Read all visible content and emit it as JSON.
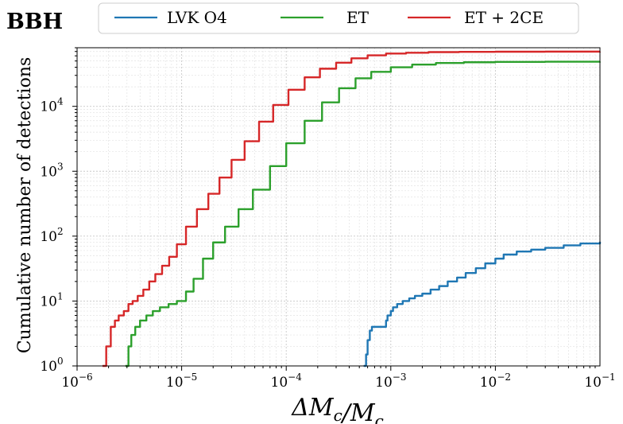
{
  "chart_data": {
    "type": "line",
    "title": "",
    "panel_label": "BBH",
    "xlabel": "ΔMc/Mc",
    "ylabel": "Cumulative number of detections",
    "xscale": "log",
    "yscale": "log",
    "xlim": [
      1e-06,
      0.1
    ],
    "ylim": [
      1,
      80000
    ],
    "x_ticks": [
      {
        "value": 1e-06,
        "base": "10",
        "exp": "−6"
      },
      {
        "value": 1e-05,
        "base": "10",
        "exp": "−5"
      },
      {
        "value": 0.0001,
        "base": "10",
        "exp": "−4"
      },
      {
        "value": 0.001,
        "base": "10",
        "exp": "−3"
      },
      {
        "value": 0.01,
        "base": "10",
        "exp": "−2"
      },
      {
        "value": 0.1,
        "base": "10",
        "exp": "−1"
      }
    ],
    "y_ticks": [
      {
        "value": 1,
        "base": "10",
        "exp": "0"
      },
      {
        "value": 10,
        "base": "10",
        "exp": "1"
      },
      {
        "value": 100,
        "base": "10",
        "exp": "2"
      },
      {
        "value": 1000,
        "base": "10",
        "exp": "3"
      },
      {
        "value": 10000,
        "base": "10",
        "exp": "4"
      }
    ],
    "grid": true,
    "legend_position": "top",
    "series": [
      {
        "name": "LVK O4",
        "color": "#1f77b4",
        "x": [
          0.00055,
          0.00058,
          0.0006,
          0.00063,
          0.00066,
          0.00088,
          0.0009,
          0.00093,
          0.001,
          0.00105,
          0.00115,
          0.0013,
          0.0015,
          0.0017,
          0.002,
          0.0024,
          0.0029,
          0.0035,
          0.0043,
          0.0052,
          0.0065,
          0.008,
          0.01,
          0.012,
          0.016,
          0.022,
          0.03,
          0.045,
          0.065,
          0.1
        ],
        "y": [
          1,
          1.5,
          2.5,
          3.5,
          4,
          4,
          5,
          6,
          7,
          8,
          9,
          10,
          11,
          12,
          13,
          15,
          17,
          20,
          23,
          27,
          32,
          38,
          45,
          52,
          58,
          62,
          66,
          72,
          77,
          82
        ]
      },
      {
        "name": "ET",
        "color": "#2ca02c",
        "x": [
          2.9e-06,
          3.1e-06,
          3.3e-06,
          3.6e-06,
          4e-06,
          4.6e-06,
          5.3e-06,
          6.2e-06,
          7.5e-06,
          9e-06,
          1.1e-05,
          1.3e-05,
          1.6e-05,
          2e-05,
          2.6e-05,
          3.5e-05,
          4.8e-05,
          7e-05,
          0.0001,
          0.00015,
          0.00022,
          0.00032,
          0.00046,
          0.00065,
          0.001,
          0.0016,
          0.0027,
          0.005,
          0.01,
          0.03,
          0.1
        ],
        "y": [
          1,
          2,
          3,
          4,
          5,
          6,
          7,
          8,
          9,
          10,
          14,
          22,
          45,
          80,
          140,
          260,
          520,
          1200,
          2700,
          6000,
          11500,
          19000,
          27000,
          34000,
          40000,
          44000,
          46500,
          47800,
          48400,
          48700,
          48800
        ]
      },
      {
        "name": "ET + 2CE",
        "color": "#d62728",
        "x": [
          1.75e-06,
          1.9e-06,
          2.1e-06,
          2.3e-06,
          2.5e-06,
          2.8e-06,
          3.1e-06,
          3.4e-06,
          3.8e-06,
          4.3e-06,
          4.9e-06,
          5.6e-06,
          6.5e-06,
          7.6e-06,
          9e-06,
          1.1e-05,
          1.4e-05,
          1.8e-05,
          2.3e-05,
          3e-05,
          4e-05,
          5.5e-05,
          7.5e-05,
          0.000105,
          0.00015,
          0.00021,
          0.0003,
          0.00042,
          0.0006,
          0.0009,
          0.0014,
          0.0023,
          0.0045,
          0.01,
          0.03,
          0.1
        ],
        "y": [
          1,
          2,
          4,
          5,
          6,
          7,
          9,
          10,
          12,
          15,
          20,
          26,
          35,
          48,
          75,
          140,
          260,
          450,
          800,
          1500,
          2900,
          5800,
          10500,
          18000,
          28000,
          38000,
          47000,
          55000,
          61000,
          65000,
          67000,
          68500,
          69200,
          69500,
          69700,
          69800
        ]
      }
    ]
  }
}
